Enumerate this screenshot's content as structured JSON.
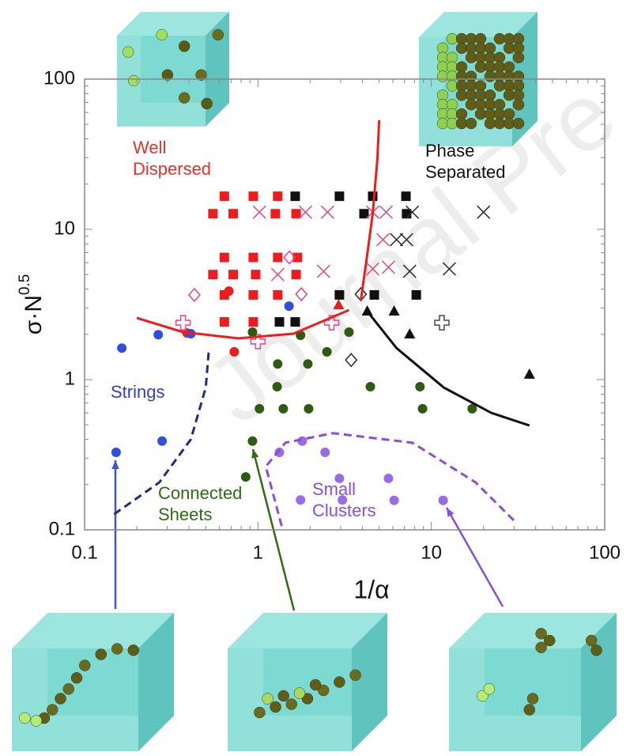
{
  "chart_data": {
    "type": "scatter",
    "xlabel": "1/α",
    "ylabel": "σ·N",
    "ylabel_sup": "0.5",
    "watermark": "Journal Pre",
    "xscale": "log",
    "yscale": "log",
    "xlim": [
      0.1,
      100
    ],
    "ylim": [
      0.1,
      100
    ],
    "xticks": [
      0.1,
      1,
      10,
      100
    ],
    "yticks": [
      0.1,
      1,
      10,
      100
    ],
    "annotations": [
      {
        "lines": [
          "Well",
          "Dispersed"
        ],
        "color": "#e8302a"
      },
      {
        "lines": [
          "Phase",
          "Separated"
        ],
        "color": "#111111"
      },
      {
        "lines": [
          "Strings"
        ],
        "color": "#2f3fc8"
      },
      {
        "lines": [
          "Connected",
          "Sheets"
        ],
        "color": "#2e6b12"
      },
      {
        "lines": [
          "Small",
          "Clusters"
        ],
        "color": "#8a4fd8"
      }
    ],
    "series": [
      {
        "marker": "square",
        "color": "#ee1c1c",
        "x": [
          0.64,
          0.94,
          1.3,
          0.55,
          0.72,
          1.26,
          1.66,
          0.64,
          0.94,
          1.3,
          1.69,
          0.55,
          0.72,
          0.97,
          1.66,
          0.64,
          0.94,
          1.3,
          0.64,
          0.94
        ],
        "values": [
          16.6,
          16.6,
          16.6,
          12.7,
          12.7,
          12.7,
          12.7,
          6.5,
          6.5,
          6.5,
          6.5,
          5.0,
          5.0,
          5.0,
          5.0,
          3.66,
          3.66,
          3.66,
          2.42,
          2.42
        ]
      },
      {
        "marker": "square",
        "color": "#111111",
        "x": [
          1.64,
          2.95,
          4.59,
          7.14,
          4.09,
          7.2,
          2.95,
          4.69,
          8.19,
          1.33,
          1.64
        ],
        "values": [
          16.6,
          16.6,
          16.6,
          16.6,
          12.7,
          12.7,
          3.66,
          3.66,
          3.66,
          2.42,
          2.42
        ]
      },
      {
        "marker": "cross",
        "color": "#e0508a",
        "x": [
          1.02,
          1.88,
          2.52,
          4.59,
          5.49,
          5.26,
          1.3,
          2.39,
          4.59,
          5.66
        ],
        "values": [
          13.0,
          13.0,
          13.0,
          13.0,
          13.0,
          8.54,
          5.0,
          5.26,
          5.45,
          5.59
        ]
      },
      {
        "marker": "cross",
        "color": "#333333",
        "x": [
          6.3,
          7.2,
          7.5,
          12.7,
          20.0,
          7.77
        ],
        "values": [
          8.54,
          8.54,
          5.26,
          5.45,
          13.0,
          13.0
        ]
      },
      {
        "marker": "triangle",
        "color": "#111111",
        "x": [
          6.1,
          7.5,
          36.8,
          4.27
        ],
        "values": [
          2.87,
          2.02,
          1.09,
          2.87
        ]
      },
      {
        "marker": "triangle",
        "color": "#ee1c1c",
        "x": [
          2.92
        ],
        "values": [
          3.16
        ]
      },
      {
        "marker": "circle",
        "color": "#ee1c1c",
        "x": [
          0.68,
          0.39,
          0.73
        ],
        "values": [
          3.88,
          2.04,
          1.53
        ]
      },
      {
        "marker": "diamond",
        "color": "#e0508a",
        "x": [
          0.43,
          1.52,
          1.78
        ],
        "values": [
          3.66,
          6.5,
          3.7
        ]
      },
      {
        "marker": "diamond",
        "color": "#333333",
        "x": [
          3.92,
          3.45
        ],
        "values": [
          3.7,
          1.35
        ]
      },
      {
        "marker": "plus",
        "color": "#e0508a",
        "x": [
          0.37,
          1.0,
          2.66
        ],
        "values": [
          2.39,
          1.79,
          2.39
        ]
      },
      {
        "marker": "plus",
        "color": "#555555",
        "x": [
          11.5
        ],
        "values": [
          2.39
        ]
      },
      {
        "marker": "circle",
        "color": "#2f4fe0",
        "x": [
          0.164,
          0.266,
          0.41,
          0.152,
          0.28,
          1.51
        ],
        "values": [
          1.62,
          1.99,
          2.02,
          0.328,
          0.39,
          3.08
        ]
      },
      {
        "marker": "circle",
        "color": "#2e5a12",
        "x": [
          0.93,
          1.76,
          1.3,
          1.29,
          1.02,
          1.4,
          1.96,
          2.5,
          3.35,
          4.45,
          8.6,
          8.9,
          17.2,
          1.94,
          0.93,
          0.85
        ],
        "values": [
          2.07,
          1.97,
          1.27,
          0.897,
          0.64,
          0.64,
          0.64,
          1.53,
          2.07,
          0.897,
          0.897,
          0.64,
          0.64,
          1.27,
          0.39,
          0.225
        ]
      },
      {
        "marker": "circle",
        "color": "#9b6ae8",
        "x": [
          1.33,
          1.8,
          2.44,
          2.95,
          5.66,
          1.76,
          3.07,
          6.1,
          11.7
        ],
        "values": [
          0.328,
          0.39,
          0.328,
          0.22,
          0.22,
          0.158,
          0.158,
          0.157,
          0.157
        ]
      },
      {
        "marker": "line",
        "style": "solid",
        "color": "#ee1c1c",
        "x": [
          0.2,
          0.37,
          0.77,
          1.6,
          3.35
        ],
        "values": [
          2.57,
          2.07,
          1.88,
          2.02,
          2.9
        ]
      },
      {
        "marker": "line",
        "style": "solid",
        "color": "#ee1c1c",
        "x": [
          3.92,
          4.22,
          4.59,
          4.89,
          5.0
        ],
        "values": [
          3.36,
          6.16,
          12.7,
          29.8,
          53.2
        ]
      },
      {
        "marker": "line",
        "style": "solid",
        "color": "#111111",
        "x": [
          4.22,
          6.3,
          11.8,
          22.2,
          36.8
        ],
        "values": [
          2.9,
          1.62,
          0.885,
          0.6,
          0.495
        ]
      },
      {
        "marker": "line",
        "style": "dashed",
        "color": "#1f2f80",
        "x": [
          0.148,
          0.27,
          0.41,
          0.5,
          0.52
        ],
        "values": [
          0.127,
          0.207,
          0.4,
          0.885,
          1.53
        ]
      },
      {
        "marker": "line",
        "style": "dashed",
        "color": "#8a4fd8",
        "x": [
          1.37,
          1.11,
          1.44,
          2.71,
          7.77,
          18.0,
          30.5
        ],
        "values": [
          0.106,
          0.264,
          0.38,
          0.44,
          0.38,
          0.207,
          0.113
        ]
      }
    ]
  }
}
